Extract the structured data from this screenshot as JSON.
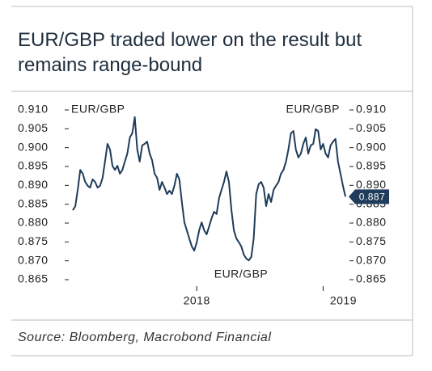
{
  "chart_data": {
    "type": "line",
    "title": "EUR/GBP traded lower on the result but remains range-bound",
    "source": "Source: Bloomberg, Macrobond Financial",
    "annotations": [
      "EUR/GBP",
      "EUR/GBP",
      "EUR/GBP"
    ],
    "last_value_label": "0.887",
    "xlim": [
      0,
      110
    ],
    "xticks": [
      {
        "value": 50,
        "label": "2018"
      },
      {
        "value": 101,
        "label": "2019"
      }
    ],
    "ylim": [
      0.865,
      0.91
    ],
    "yticks": [
      {
        "value": 0.865,
        "label": "0.865"
      },
      {
        "value": 0.87,
        "label": "0.870"
      },
      {
        "value": 0.875,
        "label": "0.875"
      },
      {
        "value": 0.88,
        "label": "0.880"
      },
      {
        "value": 0.885,
        "label": "0.885"
      },
      {
        "value": 0.89,
        "label": "0.890"
      },
      {
        "value": 0.895,
        "label": "0.895"
      },
      {
        "value": 0.9,
        "label": "0.900"
      },
      {
        "value": 0.905,
        "label": "0.905"
      },
      {
        "value": 0.91,
        "label": "0.910"
      }
    ],
    "series": [
      {
        "name": "EUR/GBP",
        "color": "#1f3c5a",
        "values": [
          0.8834,
          0.8845,
          0.8888,
          0.8941,
          0.8931,
          0.8909,
          0.8899,
          0.8894,
          0.8916,
          0.8909,
          0.8894,
          0.8899,
          0.892,
          0.8963,
          0.901,
          0.8995,
          0.8952,
          0.8941,
          0.8952,
          0.8931,
          0.8941,
          0.8963,
          0.8984,
          0.9027,
          0.9038,
          0.9081,
          0.8995,
          0.8963,
          0.9006,
          0.901,
          0.9016,
          0.8984,
          0.8967,
          0.8931,
          0.892,
          0.8888,
          0.8909,
          0.8894,
          0.8877,
          0.8886,
          0.8877,
          0.8899,
          0.8931,
          0.8916,
          0.8856,
          0.8802,
          0.8781,
          0.8759,
          0.8738,
          0.8727,
          0.8749,
          0.8781,
          0.8802,
          0.8781,
          0.877,
          0.8791,
          0.8813,
          0.883,
          0.8824,
          0.8866,
          0.8888,
          0.8909,
          0.8937,
          0.8909,
          0.8834,
          0.8781,
          0.8759,
          0.8749,
          0.8738,
          0.8716,
          0.8706,
          0.8701,
          0.871,
          0.8759,
          0.8877,
          0.8903,
          0.8909,
          0.8894,
          0.8845,
          0.8877,
          0.8856,
          0.8888,
          0.8899,
          0.8909,
          0.8931,
          0.8941,
          0.8963,
          0.8995,
          0.9038,
          0.9044,
          0.8995,
          0.8974,
          0.8984,
          0.901,
          0.9027,
          0.8984,
          0.9006,
          0.901,
          0.9049,
          0.9044,
          0.8995,
          0.901,
          0.8984,
          0.8974,
          0.9006,
          0.9016,
          0.9023,
          0.8963,
          0.8931,
          0.8899,
          0.887
        ]
      }
    ]
  }
}
